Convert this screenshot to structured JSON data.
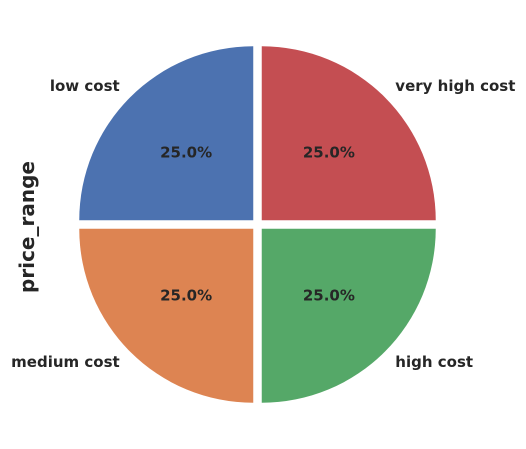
{
  "chart_data": {
    "type": "pie",
    "ylabel": "price_range",
    "slices": [
      {
        "label": "low cost",
        "value": 25.0,
        "pct_text": "25.0%",
        "color": "#4c72b0"
      },
      {
        "label": "medium cost",
        "value": 25.0,
        "pct_text": "25.0%",
        "color": "#dd8452"
      },
      {
        "label": "high cost",
        "value": 25.0,
        "pct_text": "25.0%",
        "color": "#55a868"
      },
      {
        "label": "very high cost",
        "value": 25.0,
        "pct_text": "25.0%",
        "color": "#c44e52"
      }
    ],
    "start_angle_deg": 90,
    "direction": "counterclockwise",
    "exploded": true
  }
}
